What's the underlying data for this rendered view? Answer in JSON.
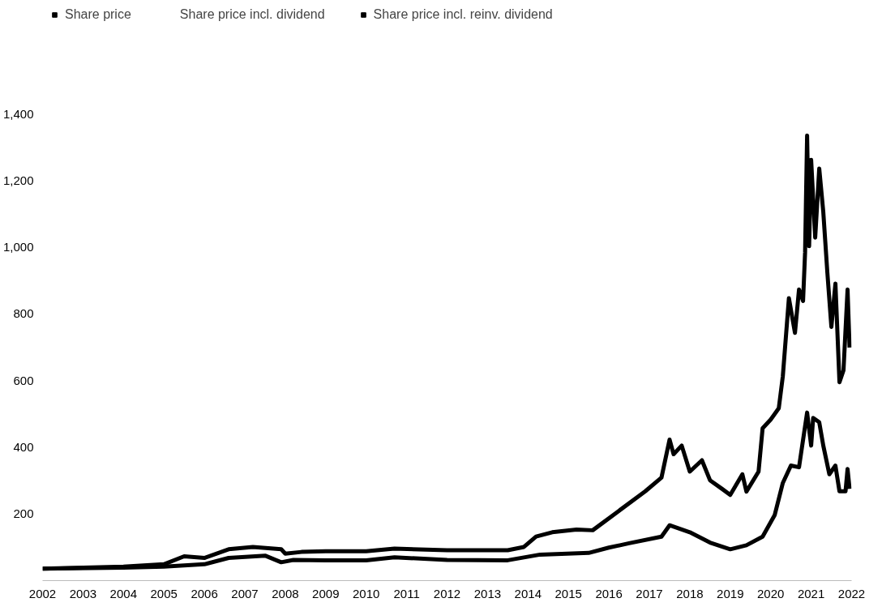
{
  "chart_data": {
    "type": "line",
    "xlim": [
      2002,
      2022
    ],
    "xticks": [
      2002,
      2003,
      2004,
      2005,
      2006,
      2007,
      2008,
      2009,
      2010,
      2011,
      2012,
      2013,
      2014,
      2015,
      2016,
      2017,
      2018,
      2019,
      2020,
      2021,
      2022
    ],
    "ylim": [
      0,
      1400
    ],
    "yticks": [
      200,
      400,
      600,
      800,
      {
        "value": 1000,
        "label": "1,000"
      },
      {
        "value": 1200,
        "label": "1,200"
      },
      {
        "value": 1400,
        "label": "1,400"
      }
    ],
    "grid": false,
    "legend": "top left",
    "line_style": "solid",
    "marker": "none",
    "series": [
      {
        "name": "Share price",
        "color": "#000000",
        "x": [
          2002.0,
          2004.0,
          2005.0,
          2006.0,
          2006.6,
          2007.5,
          2007.9,
          2008.2,
          2009.0,
          2010.0,
          2010.7,
          2012.0,
          2013.5,
          2014.3,
          2015.5,
          2016.0,
          2016.5,
          2017.3,
          2017.5,
          2018.0,
          2018.5,
          2019.0,
          2019.4,
          2019.8,
          2020.1,
          2020.3,
          2020.5,
          2020.7,
          2020.9,
          2021.0,
          2021.05,
          2021.2,
          2021.3,
          2021.45,
          2021.6,
          2021.7,
          2021.85,
          2021.9,
          2021.95
        ],
        "values": [
          36,
          39,
          42,
          49,
          68,
          75,
          55,
          62,
          61,
          61,
          70,
          62,
          61,
          78,
          83,
          99,
          112,
          132,
          166,
          145,
          114,
          94,
          106,
          132,
          197,
          293,
          345,
          340,
          504,
          405,
          488,
          475,
          405,
          319,
          345,
          268,
          268,
          335,
          275
        ]
      },
      {
        "name": "Share price incl. dividend"
      },
      {
        "name": "Share price incl. reinv. dividend",
        "color": "#000000",
        "x": [
          2002.0,
          2003.0,
          2004.0,
          2005.0,
          2005.5,
          2006.0,
          2006.6,
          2007.2,
          2007.9,
          2008.0,
          2008.4,
          2009.0,
          2010.0,
          2010.7,
          2012.0,
          2013.5,
          2013.9,
          2014.2,
          2014.6,
          2015.2,
          2015.6,
          2016.2,
          2016.9,
          2017.3,
          2017.5,
          2017.6,
          2017.8,
          2018.0,
          2018.3,
          2018.5,
          2018.8,
          2019.0,
          2019.3,
          2019.4,
          2019.7,
          2019.8,
          2020.0,
          2020.2,
          2020.3,
          2020.4,
          2020.45,
          2020.6,
          2020.7,
          2020.8,
          2020.85,
          2020.9,
          2020.95,
          2021.0,
          2021.1,
          2021.2,
          2021.3,
          2021.4,
          2021.5,
          2021.6,
          2021.7,
          2021.8,
          2021.9,
          2021.95
        ],
        "values": [
          36,
          39,
          42,
          49,
          73,
          68,
          94,
          101,
          94,
          81,
          86,
          88,
          88,
          96,
          91,
          91,
          101,
          132,
          145,
          153,
          151,
          205,
          268,
          309,
          423,
          379,
          405,
          327,
          361,
          301,
          275,
          257,
          319,
          267,
          327,
          457,
          483,
          517,
          613,
          769,
          847,
          743,
          873,
          839,
          984,
          1335,
          1003,
          1262,
          1029,
          1236,
          1106,
          925,
          761,
          891,
          595,
          631,
          873,
          699
        ]
      }
    ]
  }
}
